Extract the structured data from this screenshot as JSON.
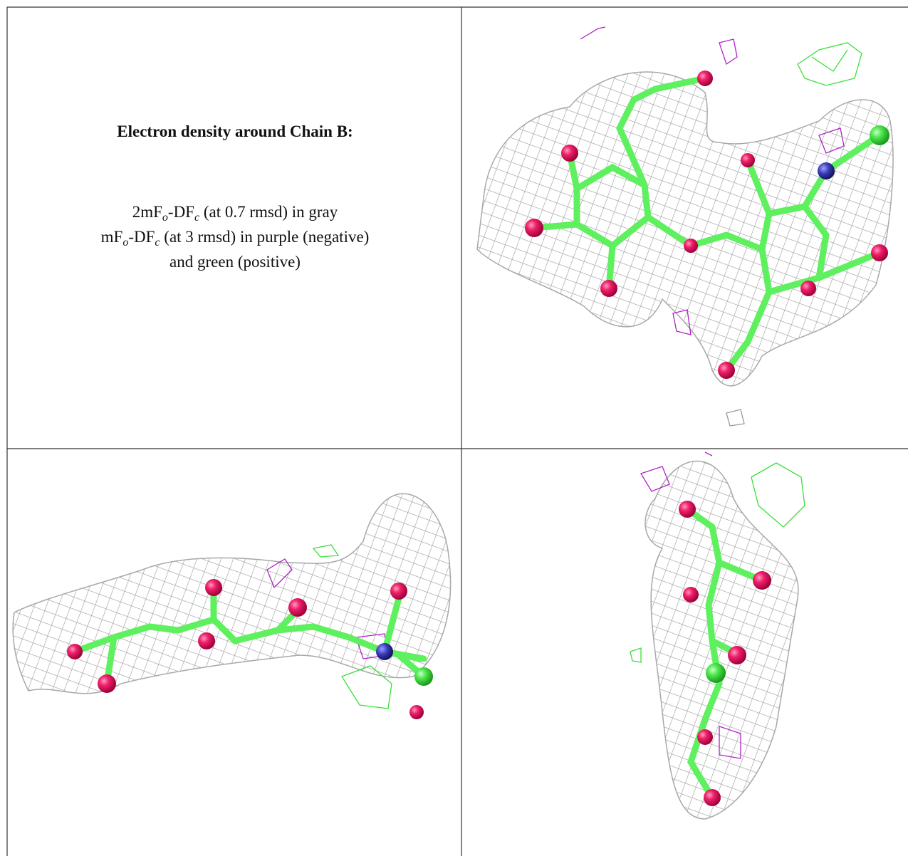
{
  "title": "Electron density around Chain B:",
  "legend_lines": [
    [
      "2mF",
      "o",
      "-DF",
      "c",
      " (at 0.7 rmsd) in gray"
    ],
    [
      "mF",
      "o",
      "-DF",
      "c",
      " (at 3 rmsd) in purple (negative)"
    ],
    [
      "and green (positive)"
    ]
  ]
}
